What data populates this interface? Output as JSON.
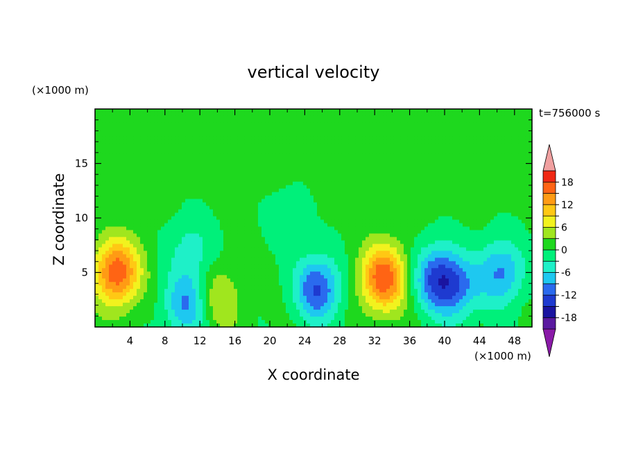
{
  "chart_data": {
    "type": "heatmap",
    "title": "vertical velocity",
    "xlabel": "X coordinate",
    "ylabel": "Z coordinate",
    "x_unit": "(×1000 m)",
    "y_unit": "(×1000 m)",
    "time_label": "t=756000  s",
    "xlim": [
      0,
      50
    ],
    "ylim": [
      0,
      20
    ],
    "x_ticks": [
      4,
      8,
      12,
      16,
      20,
      24,
      28,
      32,
      36,
      40,
      44,
      48
    ],
    "y_ticks": [
      5,
      10,
      15
    ],
    "colorbar": {
      "levels": [
        -21,
        -18,
        -15,
        -12,
        -9,
        -6,
        -3,
        0,
        3,
        6,
        9,
        12,
        15,
        18,
        21
      ],
      "tick_labels": [
        18,
        12,
        6,
        0,
        -6,
        -12,
        -18
      ],
      "colors": [
        "#8a1aa8",
        "#5a1aa0",
        "#1a14a0",
        "#1e3ad0",
        "#2a6aee",
        "#1ec8f0",
        "#1ef0c8",
        "#00f07a",
        "#1ed81e",
        "#a0e61e",
        "#f2f21e",
        "#ffc814",
        "#ff9b14",
        "#ff6414",
        "#f02814",
        "#f0a0a0"
      ]
    },
    "features": [
      {
        "x": 2.5,
        "z": 5.0,
        "amp": 17
      },
      {
        "x": 33.0,
        "z": 4.5,
        "amp": 17
      },
      {
        "x": 14.0,
        "z": 2.5,
        "amp": 6
      },
      {
        "x": 25.5,
        "z": 3.5,
        "amp": -13
      },
      {
        "x": 39.0,
        "z": 4.5,
        "amp": -12
      },
      {
        "x": 41.5,
        "z": 3.5,
        "amp": -9
      },
      {
        "x": 46.5,
        "z": 5.0,
        "amp": -10
      },
      {
        "x": 10.5,
        "z": 2.0,
        "amp": -10
      },
      {
        "x": 11.0,
        "z": 7.0,
        "amp": -5
      },
      {
        "x": 22.0,
        "z": 10.0,
        "amp": -2
      }
    ]
  }
}
